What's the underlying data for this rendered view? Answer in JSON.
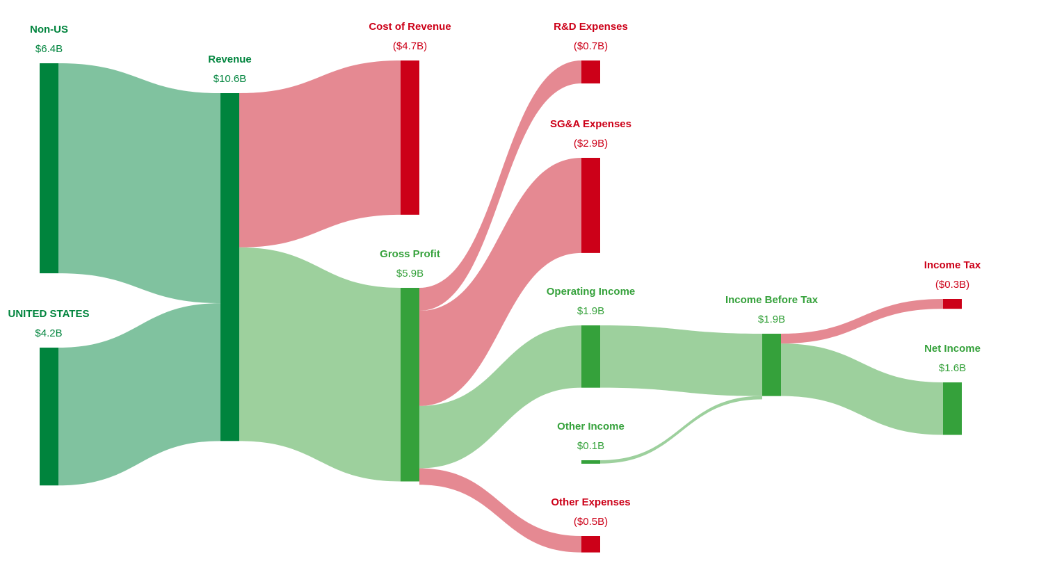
{
  "chart_data": {
    "type": "sankey",
    "units": "$B",
    "colors": {
      "revenue_node": "#00843d",
      "revenue_link": "#80c29f",
      "profit_node": "#35a13b",
      "profit_link": "#9dd09d",
      "expense_node": "#cc0018",
      "expense_link": "#e37f89",
      "revenue_text": "#00843d",
      "profit_text": "#35a13b",
      "expense_text": "#cc0018"
    },
    "nodes": [
      {
        "id": "non_us",
        "name": "Non-US",
        "value_label": "$6.4B",
        "value": 6.4,
        "kind": "revenue"
      },
      {
        "id": "us",
        "name": "UNITED STATES",
        "value_label": "$4.2B",
        "value": 4.2,
        "kind": "revenue"
      },
      {
        "id": "revenue",
        "name": "Revenue",
        "value_label": "$10.6B",
        "value": 10.6,
        "kind": "revenue"
      },
      {
        "id": "cost_of_revenue",
        "name": "Cost of Revenue",
        "value_label": "($4.7B)",
        "value": 4.7,
        "kind": "expense"
      },
      {
        "id": "gross_profit",
        "name": "Gross Profit",
        "value_label": "$5.9B",
        "value": 5.9,
        "kind": "profit"
      },
      {
        "id": "rd",
        "name": "R&D Expenses",
        "value_label": "($0.7B)",
        "value": 0.7,
        "kind": "expense"
      },
      {
        "id": "sga",
        "name": "SG&A Expenses",
        "value_label": "($2.9B)",
        "value": 2.9,
        "kind": "expense"
      },
      {
        "id": "operating_income",
        "name": "Operating Income",
        "value_label": "$1.9B",
        "value": 1.9,
        "kind": "profit"
      },
      {
        "id": "other_income",
        "name": "Other Income",
        "value_label": "$0.1B",
        "value": 0.1,
        "kind": "profit"
      },
      {
        "id": "other_expenses",
        "name": "Other Expenses",
        "value_label": "($0.5B)",
        "value": 0.5,
        "kind": "expense"
      },
      {
        "id": "income_before_tax",
        "name": "Income Before Tax",
        "value_label": "$1.9B",
        "value": 1.9,
        "kind": "profit"
      },
      {
        "id": "income_tax",
        "name": "Income Tax",
        "value_label": "($0.3B)",
        "value": 0.3,
        "kind": "expense"
      },
      {
        "id": "net_income",
        "name": "Net Income",
        "value_label": "$1.6B",
        "value": 1.6,
        "kind": "profit"
      }
    ],
    "links": [
      {
        "source": "non_us",
        "target": "revenue",
        "value": 6.4,
        "kind": "revenue"
      },
      {
        "source": "us",
        "target": "revenue",
        "value": 4.2,
        "kind": "revenue"
      },
      {
        "source": "revenue",
        "target": "cost_of_revenue",
        "value": 4.7,
        "kind": "expense"
      },
      {
        "source": "revenue",
        "target": "gross_profit",
        "value": 5.9,
        "kind": "profit"
      },
      {
        "source": "gross_profit",
        "target": "rd",
        "value": 0.7,
        "kind": "expense"
      },
      {
        "source": "gross_profit",
        "target": "sga",
        "value": 2.9,
        "kind": "expense"
      },
      {
        "source": "gross_profit",
        "target": "operating_income",
        "value": 1.9,
        "kind": "profit"
      },
      {
        "source": "gross_profit",
        "target": "other_expenses",
        "value": 0.5,
        "kind": "expense"
      },
      {
        "source": "operating_income",
        "target": "income_before_tax",
        "value": 1.9,
        "kind": "profit"
      },
      {
        "source": "other_income",
        "target": "income_before_tax",
        "value": 0.1,
        "kind": "profit"
      },
      {
        "source": "income_before_tax",
        "target": "income_tax",
        "value": 0.3,
        "kind": "expense"
      },
      {
        "source": "income_before_tax",
        "target": "net_income",
        "value": 1.6,
        "kind": "profit"
      }
    ]
  }
}
